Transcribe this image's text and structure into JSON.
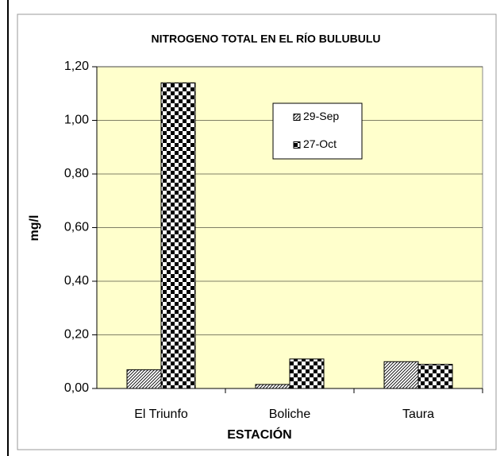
{
  "chart_data": {
    "type": "bar",
    "title": "NITROGENO TOTAL EN EL RÍO BULUBULU",
    "x_label": "ESTACIÓN",
    "y_label": "mg/l",
    "categories": [
      "El Triunfo",
      "Boliche",
      "Taura"
    ],
    "series": [
      {
        "name": "29-Sep",
        "color": "#000000",
        "pattern": "diagonal",
        "values": [
          0.07,
          0.015,
          0.1
        ]
      },
      {
        "name": "27-Oct",
        "color": "#000000",
        "pattern": "checker",
        "values": [
          1.14,
          0.11,
          0.09
        ]
      }
    ],
    "ylim": [
      0,
      1.2
    ],
    "yticks": [
      {
        "value": 0,
        "label": "0,00"
      },
      {
        "value": 0.2,
        "label": "0,20"
      },
      {
        "value": 0.4,
        "label": "0,40"
      },
      {
        "value": 0.6,
        "label": "0,60"
      },
      {
        "value": 0.8,
        "label": "0,80"
      },
      {
        "value": 1.0,
        "label": "1,00"
      },
      {
        "value": 1.2,
        "label": "1,20"
      }
    ],
    "grid": true,
    "plot_background": "#ffffcc",
    "legend": "top-right"
  }
}
